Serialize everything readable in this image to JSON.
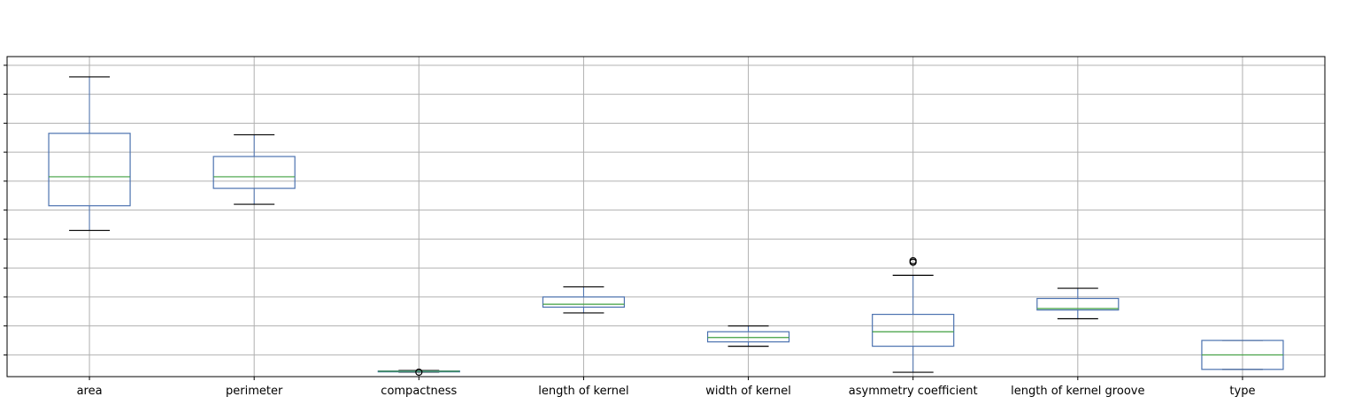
{
  "chart_data": {
    "type": "box",
    "title": "",
    "xlabel": "",
    "ylabel": "",
    "ylim": [
      0.5,
      22.6
    ],
    "grid": true,
    "categories": [
      "area",
      "perimeter",
      "compactness",
      "length of kernel",
      "width of kernel",
      "asymmetry coefficient",
      "length of kernel groove",
      "type"
    ],
    "boxes": [
      {
        "category": "area",
        "whisker_low": 10.6,
        "q1": 12.3,
        "median": 14.3,
        "q3": 17.3,
        "whisker_high": 21.2,
        "outliers": []
      },
      {
        "category": "perimeter",
        "whisker_low": 12.4,
        "q1": 13.5,
        "median": 14.3,
        "q3": 15.7,
        "whisker_high": 17.2,
        "outliers": []
      },
      {
        "category": "compactness",
        "whisker_low": 0.81,
        "q1": 0.86,
        "median": 0.87,
        "q3": 0.89,
        "whisker_high": 0.92,
        "outliers": [
          0.81
        ]
      },
      {
        "category": "length of kernel",
        "whisker_low": 4.9,
        "q1": 5.3,
        "median": 5.5,
        "q3": 6.0,
        "whisker_high": 6.7,
        "outliers": []
      },
      {
        "category": "width of kernel",
        "whisker_low": 2.6,
        "q1": 2.9,
        "median": 3.2,
        "q3": 3.6,
        "whisker_high": 4.0,
        "outliers": []
      },
      {
        "category": "asymmetry coefficient",
        "whisker_low": 0.8,
        "q1": 2.6,
        "median": 3.6,
        "q3": 4.8,
        "whisker_high": 7.5,
        "outliers": [
          8.4,
          8.5
        ]
      },
      {
        "category": "length of kernel groove",
        "whisker_low": 4.5,
        "q1": 5.1,
        "median": 5.2,
        "q3": 5.9,
        "whisker_high": 6.6,
        "outliers": []
      },
      {
        "category": "type",
        "whisker_low": 1.0,
        "q1": 1.0,
        "median": 2.0,
        "q3": 3.0,
        "whisker_high": 3.0,
        "outliers": []
      }
    ],
    "colors": {
      "box": "#4c72b0",
      "median": "#3f9f3f",
      "whisker_cap": "#000000",
      "grid": "#b0b0b0",
      "axes": "#000000"
    }
  }
}
